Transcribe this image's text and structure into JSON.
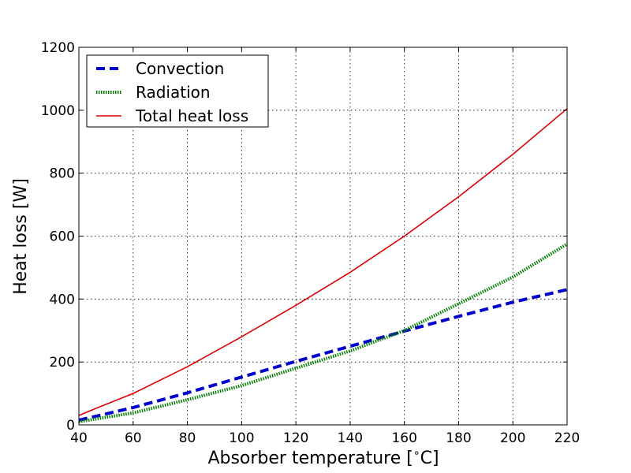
{
  "chart_data": {
    "type": "line",
    "title": "",
    "xlabel": "Absorber temperature [",
    "xlabel_degree": "∘",
    "xlabel_unit": "C]",
    "ylabel": "Heat loss  [W]",
    "xlim": [
      40,
      220
    ],
    "ylim": [
      0,
      1200
    ],
    "xticks": [
      40,
      60,
      80,
      100,
      120,
      140,
      160,
      180,
      200,
      220
    ],
    "yticks": [
      0,
      200,
      400,
      600,
      800,
      1000,
      1200
    ],
    "grid": true,
    "legend_position": "top-left",
    "x": [
      40,
      47,
      60,
      80,
      100,
      120,
      140,
      160,
      180,
      200,
      220
    ],
    "series": [
      {
        "name": "Convection",
        "color": "#0000cc",
        "style": "dashed",
        "values": [
          15,
          29,
          55,
          102,
          152,
          202,
          250,
          298,
          345,
          390,
          430
        ]
      },
      {
        "name": "Radiation",
        "color": "#007f00",
        "style": "dotted",
        "values": [
          10,
          20,
          38,
          80,
          125,
          180,
          235,
          300,
          385,
          470,
          575
        ]
      },
      {
        "name": "Total heat loss",
        "color": "#dd0000",
        "style": "solid",
        "values": [
          30,
          55,
          100,
          185,
          280,
          380,
          485,
          600,
          725,
          860,
          1005
        ]
      }
    ]
  }
}
